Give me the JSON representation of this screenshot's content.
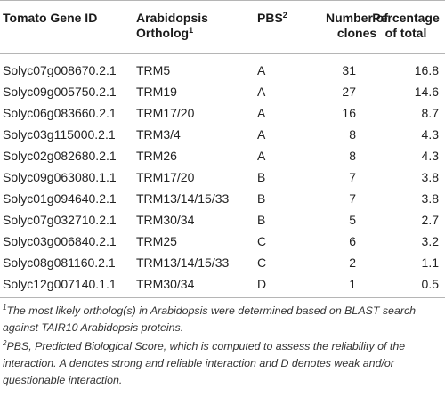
{
  "headers": {
    "gene_id": "Tomato Gene ID",
    "ortholog_line1": "Arabidopsis",
    "ortholog_line2": "Ortholog",
    "ortholog_sup": "1",
    "pbs": "PBS",
    "pbs_sup": "2",
    "clones_line1": "Number of",
    "clones_line2": "clones",
    "pct_line1": "Percentage",
    "pct_line2": "of total"
  },
  "rows": [
    {
      "gene": "Solyc07g008670.2.1",
      "ortholog": "TRM5",
      "pbs": "A",
      "clones": "31",
      "pct": "16.8"
    },
    {
      "gene": "Solyc09g005750.2.1",
      "ortholog": "TRM19",
      "pbs": "A",
      "clones": "27",
      "pct": "14.6"
    },
    {
      "gene": "Solyc06g083660.2.1",
      "ortholog": "TRM17/20",
      "pbs": "A",
      "clones": "16",
      "pct": "8.7"
    },
    {
      "gene": "Solyc03g115000.2.1",
      "ortholog": "TRM3/4",
      "pbs": "A",
      "clones": "8",
      "pct": "4.3"
    },
    {
      "gene": "Solyc02g082680.2.1",
      "ortholog": "TRM26",
      "pbs": "A",
      "clones": "8",
      "pct": "4.3"
    },
    {
      "gene": "Solyc09g063080.1.1",
      "ortholog": "TRM17/20",
      "pbs": "B",
      "clones": "7",
      "pct": "3.8"
    },
    {
      "gene": "Solyc01g094640.2.1",
      "ortholog": "TRM13/14/15/33",
      "pbs": "B",
      "clones": "7",
      "pct": "3.8"
    },
    {
      "gene": "Solyc07g032710.2.1",
      "ortholog": "TRM30/34",
      "pbs": "B",
      "clones": "5",
      "pct": "2.7"
    },
    {
      "gene": "Solyc03g006840.2.1",
      "ortholog": "TRM25",
      "pbs": "C",
      "clones": "6",
      "pct": "3.2"
    },
    {
      "gene": "Solyc08g081160.2.1",
      "ortholog": "TRM13/14/15/33",
      "pbs": "C",
      "clones": "2",
      "pct": "1.1"
    },
    {
      "gene": "Solyc12g007140.1.1",
      "ortholog": "TRM30/34",
      "pbs": "D",
      "clones": "1",
      "pct": "0.5"
    }
  ],
  "footnotes": {
    "fn1_marker": "1",
    "fn1_text": "The most likely ortholog(s) in Arabidopsis were determined based on BLAST search against TAIR10 Arabidopsis proteins.",
    "fn2_marker": "2",
    "fn2_text": "PBS, Predicted Biological Score, which is computed to assess the reliability of the interaction. A denotes strong and reliable interaction and D denotes weak and/or questionable interaction."
  },
  "colors": {
    "rule": "#b5b5b5",
    "text": "#222222"
  }
}
